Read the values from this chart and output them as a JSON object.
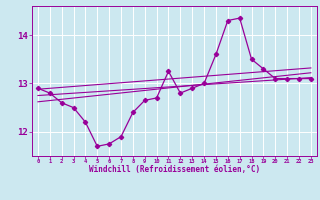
{
  "xlabel": "Windchill (Refroidissement éolien,°C)",
  "background_color": "#cce8f0",
  "grid_color": "#ffffff",
  "line_color": "#990099",
  "hours": [
    0,
    1,
    2,
    3,
    4,
    5,
    6,
    7,
    8,
    9,
    10,
    11,
    12,
    13,
    14,
    15,
    16,
    17,
    18,
    19,
    20,
    21,
    22,
    23
  ],
  "windchill": [
    12.9,
    12.8,
    12.6,
    12.5,
    12.2,
    11.7,
    11.75,
    11.9,
    12.4,
    12.65,
    12.7,
    13.25,
    12.8,
    12.9,
    13.0,
    13.6,
    14.3,
    14.35,
    13.5,
    13.3,
    13.1,
    13.1,
    13.1,
    13.1
  ],
  "ylim": [
    11.5,
    14.6
  ],
  "yticks": [
    12,
    13,
    14
  ],
  "xticks": [
    0,
    1,
    2,
    3,
    4,
    5,
    6,
    7,
    8,
    9,
    10,
    11,
    12,
    13,
    14,
    15,
    16,
    17,
    18,
    19,
    20,
    21,
    22,
    23
  ],
  "trend_lines": [
    {
      "x": [
        0,
        23
      ],
      "y": [
        12.75,
        13.12
      ]
    },
    {
      "x": [
        0,
        23
      ],
      "y": [
        12.62,
        13.22
      ]
    },
    {
      "x": [
        0,
        23
      ],
      "y": [
        12.88,
        13.32
      ]
    }
  ]
}
